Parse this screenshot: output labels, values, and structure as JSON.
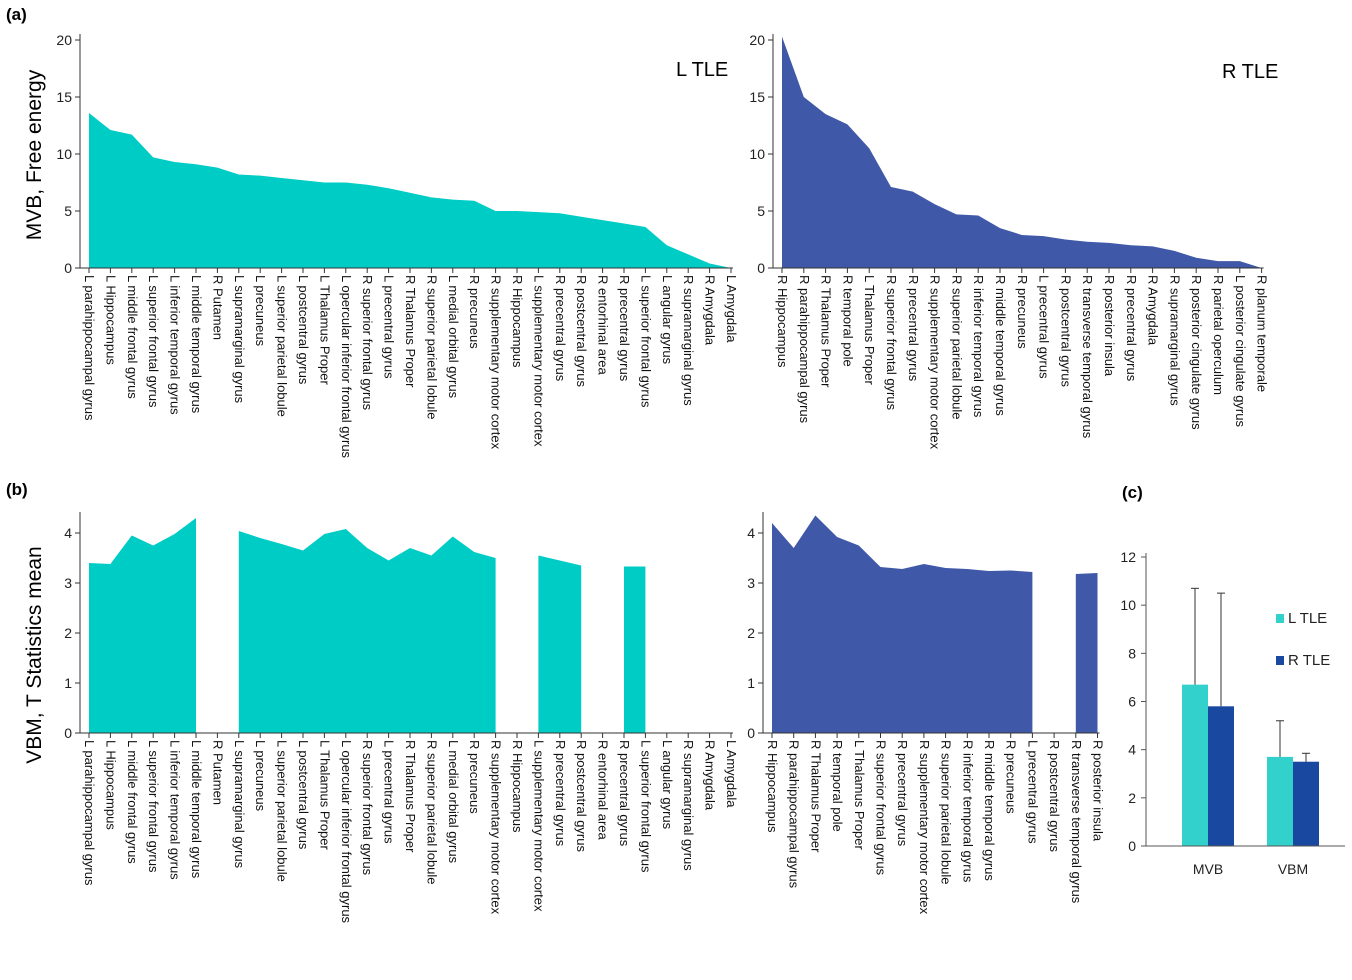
{
  "panel_letters": {
    "a": "(a)",
    "b": "(b)",
    "c": "(c)"
  },
  "y_labels": {
    "a": "MVB, Free energy",
    "b": "VBM, T Statistics mean"
  },
  "colors": {
    "left": "#00CCC6",
    "right": "#3F58A8",
    "bar_left": "#33D1CC",
    "bar_right": "#1848A0"
  },
  "chart_data": [
    {
      "id": "a-left",
      "type": "area",
      "label": "L TLE",
      "color": "#00CCC6",
      "ylim": [
        0,
        20
      ],
      "yticks": [
        0,
        5,
        10,
        15,
        20
      ],
      "categories": [
        "L parahippocampal gyrus",
        "L Hippocampus",
        "L middle frontal gyrus",
        "L superior frontal gyrus",
        "L inferior temporal gyrus",
        "L middle temporal gyrus",
        "R Putamen",
        "L supramarginal gyrus",
        "L precuneus",
        "L superior parietal lobule",
        "L postcentral gyrus",
        "L Thalamus Proper",
        "L opercular inferior frontal gyrus",
        "R superior frontal gyrus",
        "L precentral gyrus",
        "R Thalamus Proper",
        "R superior parietal lobule",
        "L medial orbital gyrus",
        "R precuneus",
        "R supplementary motor cortex",
        "R Hippocampus",
        "L supplementary motor cortex",
        "R precentral gyrus",
        "R postcentral gyrus",
        "R entorhinal area",
        "R precentral gyrus",
        "L superior frontal gyrus",
        "L angular gyrus",
        "R supramarginal gyrus",
        "R Amygdala",
        "L Amygdala"
      ],
      "values": [
        13.6,
        12.1,
        11.7,
        9.7,
        9.3,
        9.1,
        8.8,
        8.2,
        8.1,
        7.9,
        7.7,
        7.5,
        7.5,
        7.3,
        7.0,
        6.6,
        6.2,
        6.0,
        5.9,
        5.0,
        5.0,
        4.9,
        4.8,
        4.5,
        4.2,
        3.9,
        3.6,
        2.0,
        1.2,
        0.4,
        0.0
      ]
    },
    {
      "id": "a-right",
      "type": "area",
      "label": "R TLE",
      "color": "#3F58A8",
      "ylim": [
        0,
        20
      ],
      "yticks": [
        0,
        5,
        10,
        15,
        20
      ],
      "categories": [
        "R Hippocampus",
        "R parahippocampal gyrus",
        "R Thalamus Proper",
        "R temporal pole",
        "L Thalamus Proper",
        "R superior frontal gyrus",
        "R precentral gyrus",
        "R supplementary motor cortex",
        "R superior parietal lobule",
        "R inferior temporal gyrus",
        "R middle temporal gyrus",
        "R precuneus",
        "L precentral gyrus",
        "R postcentral gyrus",
        "R transverse temporal gyrus",
        "R posterior insula",
        "R precentral gyrus",
        "R Amygdala",
        "R supramarginal gyrus",
        "R posterior cingulate gyrus",
        "R parietal operculum",
        "L posterior cingulate gyrus",
        "R planum temporale"
      ],
      "values": [
        20.3,
        15.0,
        13.5,
        12.6,
        10.5,
        7.1,
        6.7,
        5.6,
        4.7,
        4.6,
        3.5,
        2.9,
        2.8,
        2.5,
        2.3,
        2.2,
        2.0,
        1.9,
        1.5,
        0.9,
        0.6,
        0.6,
        0.0
      ]
    },
    {
      "id": "b-left",
      "type": "area",
      "color": "#00CCC6",
      "ylim": [
        0,
        4.3
      ],
      "yticks": [
        0,
        1,
        2,
        3,
        4
      ],
      "categories": [
        "L parahippocampal gyrus",
        "L Hippocampus",
        "L middle frontal gyrus",
        "L superior frontal gyrus",
        "L inferior temporal gyrus",
        "L middle temporal gyrus",
        "R Putamen",
        "L supramarginal gyrus",
        "L precuneus",
        "L superior parietal lobule",
        "L postcentral gyrus",
        "L Thalamus Proper",
        "L opercular inferior frontal gyrus",
        "R superior frontal gyrus",
        "L precentral gyrus",
        "R Thalamus Proper",
        "R superior parietal lobule",
        "L medial orbital gyrus",
        "R precuneus",
        "R supplementary motor cortex",
        "R Hippocampus",
        "L supplementary motor cortex",
        "R precentral gyrus",
        "R postcentral gyrus",
        "R entorhinal area",
        "R precentral gyrus",
        "L superior frontal gyrus",
        "L angular gyrus",
        "R supramarginal gyrus",
        "R Amygdala",
        "L Amygdala"
      ],
      "values": [
        3.4,
        3.38,
        3.95,
        3.75,
        3.98,
        4.3,
        null,
        4.04,
        3.9,
        3.78,
        3.65,
        3.98,
        4.08,
        3.7,
        3.45,
        3.7,
        3.55,
        3.93,
        3.62,
        3.5,
        null,
        3.55,
        3.45,
        3.35,
        null,
        3.33,
        3.33,
        null,
        null,
        null,
        null
      ]
    },
    {
      "id": "b-right",
      "type": "area",
      "color": "#3F58A8",
      "ylim": [
        0,
        4.3
      ],
      "yticks": [
        0,
        1,
        2,
        3,
        4
      ],
      "categories": [
        "R Hippocampus",
        "R parahippocampal gyrus",
        "R Thalamus Proper",
        "R temporal pole",
        "L Thalamus Proper",
        "R superior frontal gyrus",
        "R precentral gyrus",
        "R supplementary motor cortex",
        "R superior parietal lobule",
        "R inferior temporal gyrus",
        "R middle temporal gyrus",
        "R precuneus",
        "L precentral gyrus",
        "R postcentral gyrus",
        "R transverse temporal gyrus",
        "R posterior insula"
      ],
      "values": [
        4.2,
        3.7,
        4.35,
        3.92,
        3.75,
        3.32,
        3.28,
        3.38,
        3.3,
        3.28,
        3.24,
        3.25,
        3.22,
        null,
        3.18,
        3.2
      ]
    },
    {
      "id": "c",
      "type": "bar",
      "categories": [
        "MVB",
        "VBM"
      ],
      "series": [
        {
          "name": "L TLE",
          "values": [
            6.7,
            3.7
          ],
          "error": [
            4.0,
            1.5
          ]
        },
        {
          "name": "R TLE",
          "values": [
            5.8,
            3.5
          ],
          "error": [
            4.7,
            0.35
          ]
        }
      ],
      "ylim": [
        0,
        12
      ],
      "yticks": [
        0,
        2,
        4,
        6,
        8,
        10,
        12
      ],
      "legend": "right"
    }
  ]
}
